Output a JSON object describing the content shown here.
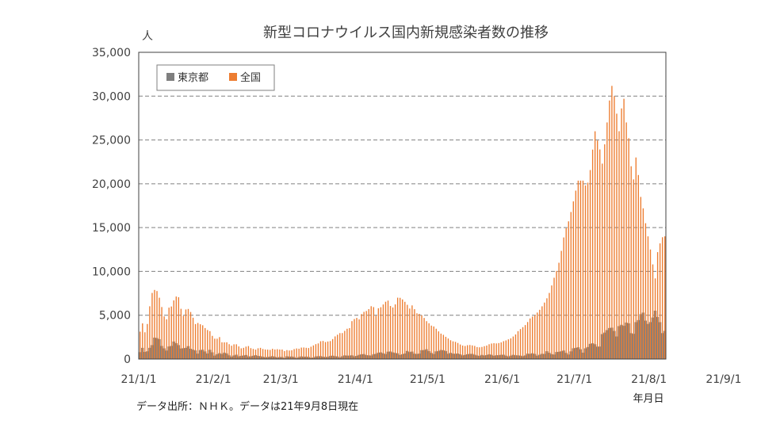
{
  "chart_data": {
    "type": "bar",
    "title": "新型コロナウイルス国内新規感染者数の推移",
    "ylabel": "人",
    "xlabel": "年月日",
    "ylim": [
      0,
      35000
    ],
    "yticks": [
      0,
      5000,
      10000,
      15000,
      20000,
      25000,
      30000,
      35000
    ],
    "ytick_labels": [
      "0",
      "5,000",
      "10,000",
      "15,000",
      "20,000",
      "25,000",
      "30,000",
      "35,000"
    ],
    "x_tick_labels": [
      "21/1/1",
      "21/2/1",
      "21/3/1",
      "21/4/1",
      "21/5/1",
      "21/6/1",
      "21/7/1",
      "21/8/1",
      "21/9/1"
    ],
    "grid": "horizontal-dashed",
    "legend_position": "top-left",
    "series": [
      {
        "name": "東京都",
        "color": "#7f7f7f",
        "values": [
          783,
          1278,
          816,
          884,
          1278,
          1591,
          2447,
          2392,
          2268,
          1494,
          1219,
          970,
          1433,
          1502,
          2001,
          1809,
          1592,
          1204,
          1240,
          1274,
          1471,
          1175,
          1070,
          986,
          618,
          1026,
          1064,
          868,
          633,
          1056,
          769,
          393,
          556,
          676,
          577,
          734,
          639,
          429,
          276,
          412,
          500,
          307,
          371,
          407,
          463,
          304,
          309,
          378,
          445,
          353,
          327,
          266,
          213,
          234,
          275,
          329,
          270,
          179,
          240,
          232,
          121,
          316,
          279,
          289,
          237,
          116,
          232,
          303,
          269,
          279,
          241,
          152,
          175,
          300,
          320,
          331,
          272,
          237,
          256,
          342,
          386,
          323,
          304,
          187,
          313,
          420,
          394,
          391,
          430,
          312,
          364,
          475,
          545,
          570,
          446,
          421,
          399,
          555,
          591,
          729,
          759,
          658,
          571,
          843,
          861,
          759,
          697,
          654,
          475,
          548,
          629,
          925,
          797,
          851,
          614,
          575,
          621,
          1010,
          1027,
          1121,
          908,
          702,
          573,
          878,
          925,
          1032,
          1004,
          912,
          606,
          709,
          617,
          600,
          631,
          541,
          419,
          473,
          551,
          587,
          592,
          499,
          413,
          362,
          473,
          404,
          456,
          538,
          483,
          370,
          439,
          438,
          487,
          494,
          387,
          297,
          388,
          482,
          432,
          420,
          392,
          330,
          414,
          615,
          591,
          658,
          581,
          388,
          488,
          599,
          585,
          894,
          719,
          560,
          513,
          800,
          826,
          887,
          976,
          702,
          519,
          877,
          1228,
          1274,
          1342,
          1116,
          730,
          1223,
          1367,
          1734,
          1803,
          1690,
          1418,
          1426,
          2848,
          3019,
          3300,
          3542,
          3579,
          3207,
          2575,
          3757,
          3910,
          3788,
          4166,
          4076,
          2955,
          2879,
          4212,
          4444,
          5122,
          5302,
          4383,
          4006,
          4216,
          4736,
          5519,
          4798,
          4209,
          2957,
          3212,
          3953,
          3902,
          3653,
          3173,
          2685,
          2286,
          1917,
          2536,
          3148,
          2500,
          2104,
          1715,
          1464,
          1854
        ],
        "values_note": ""
      },
      {
        "name": "全国",
        "color": "#ed7d31",
        "values": [
          3126,
          4070,
          3054,
          4001,
          6022,
          7545,
          7885,
          7761,
          7000,
          5934,
          4868,
          4535,
          5866,
          5999,
          6690,
          7133,
          7052,
          5734,
          4929,
          5658,
          5716,
          5369,
          4715,
          3992,
          4114,
          3969,
          3854,
          3537,
          3313,
          3185,
          2644,
          2324,
          2321,
          2505,
          1913,
          1905,
          1910,
          1695,
          1520,
          1679,
          1685,
          1442,
          1224,
          1279,
          1420,
          1480,
          1244,
          1154,
          1078,
          1229,
          1278,
          1148,
          1092,
          1078,
          1046,
          1168,
          1089,
          1126,
          1088,
          1087,
          914,
          1020,
          975,
          1007,
          1138,
          1209,
          1180,
          1307,
          1318,
          1283,
          1256,
          1407,
          1556,
          1701,
          1783,
          2030,
          2066,
          1940,
          2003,
          2053,
          2279,
          2584,
          2777,
          2958,
          2964,
          3220,
          3456,
          3530,
          4326,
          4567,
          4694,
          4531,
          5126,
          5386,
          5484,
          5698,
          6030,
          5928,
          4931,
          5793,
          5913,
          6228,
          6540,
          6670,
          6053,
          5886,
          6236,
          7003,
          6986,
          6804,
          6532,
          6188,
          5765,
          6120,
          5690,
          5219,
          5157,
          4993,
          4690,
          4321,
          4082,
          3816,
          3719,
          3459,
          3158,
          2903,
          2766,
          2538,
          2346,
          2147,
          2021,
          1962,
          1836,
          1660,
          1542,
          1489,
          1580,
          1603,
          1556,
          1497,
          1368,
          1338,
          1383,
          1466,
          1540,
          1688,
          1770,
          1805,
          1783,
          1823,
          1900,
          2040,
          2125,
          2247,
          2364,
          2573,
          2807,
          3182,
          3421,
          3640,
          3877,
          4224,
          4629,
          4845,
          5011,
          5303,
          5621,
          6018,
          6445,
          6933,
          7543,
          8398,
          9278,
          10054,
          10989,
          12343,
          13875,
          14934,
          15713,
          16780,
          17990,
          19217,
          20360,
          20361,
          20361,
          19803,
          20126,
          21566,
          23900,
          25990,
          24932,
          23917,
          22300,
          24500,
          27000,
          29500,
          31170,
          30000,
          28000,
          26000,
          28600,
          29700,
          27000,
          25200,
          22000,
          20500,
          23000,
          21000,
          18500,
          17200,
          15500,
          14000,
          12500,
          10800,
          9200,
          12200,
          13200,
          13900,
          14000
        ]
      }
    ]
  }
}
